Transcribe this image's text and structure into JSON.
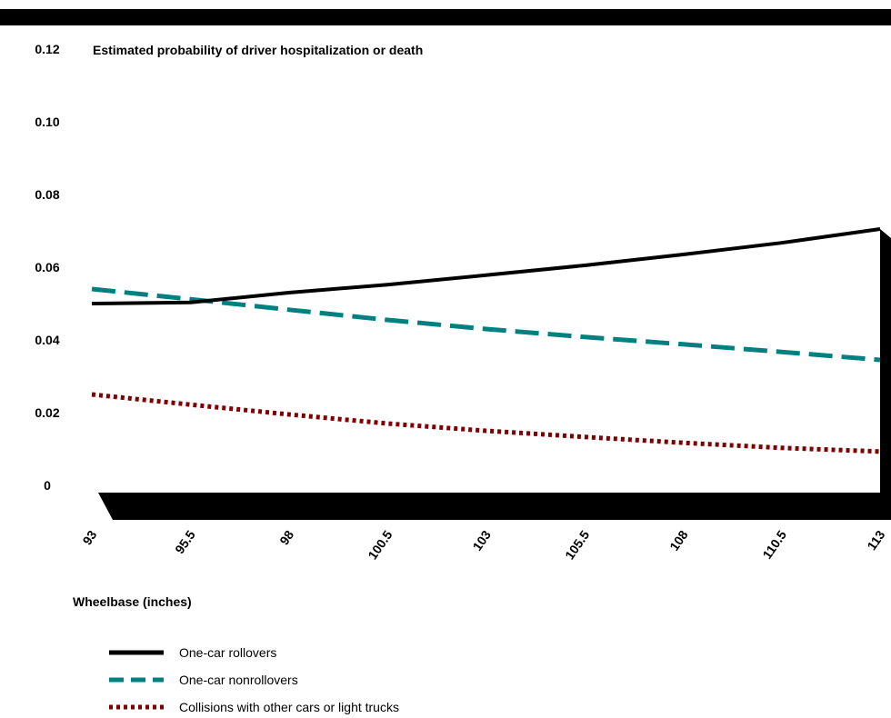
{
  "chart_data": {
    "type": "line",
    "title": "Estimated probability of driver hospitalization or death",
    "xlabel": "Wheelbase (inches)",
    "ylabel": "",
    "x": [
      93,
      95.5,
      98,
      100.5,
      103,
      105.5,
      108,
      110.5,
      113
    ],
    "x_tick_labels": [
      "93",
      "95.5",
      "98",
      "100.5",
      "103",
      "105.5",
      "108",
      "110.5",
      "113"
    ],
    "xlim": [
      93,
      113
    ],
    "y_ticks": [
      0,
      0.02,
      0.04,
      0.06,
      0.08,
      0.1,
      0.12
    ],
    "y_tick_labels": [
      "0",
      "0.02",
      "0.04",
      "0.06",
      "0.08",
      "0.10",
      "0.12"
    ],
    "ylim": [
      0,
      0.12
    ],
    "grid": false,
    "legend_position": "bottom-left",
    "series": [
      {
        "name": "One-car rollovers",
        "color": "#000000",
        "style": "solid",
        "values": [
          0.05,
          0.0503,
          0.053,
          0.0552,
          0.0578,
          0.0605,
          0.0635,
          0.0667,
          0.0705
        ]
      },
      {
        "name": "One-car nonrollovers",
        "color": "#008080",
        "style": "dashed",
        "values": [
          0.054,
          0.0512,
          0.0483,
          0.0455,
          0.043,
          0.0408,
          0.0388,
          0.0367,
          0.0345
        ]
      },
      {
        "name": "Collisions with other cars or light trucks",
        "color": "#800000",
        "style": "dotted",
        "values": [
          0.025,
          0.0222,
          0.0195,
          0.017,
          0.015,
          0.0133,
          0.0117,
          0.0103,
          0.0093
        ]
      }
    ]
  }
}
